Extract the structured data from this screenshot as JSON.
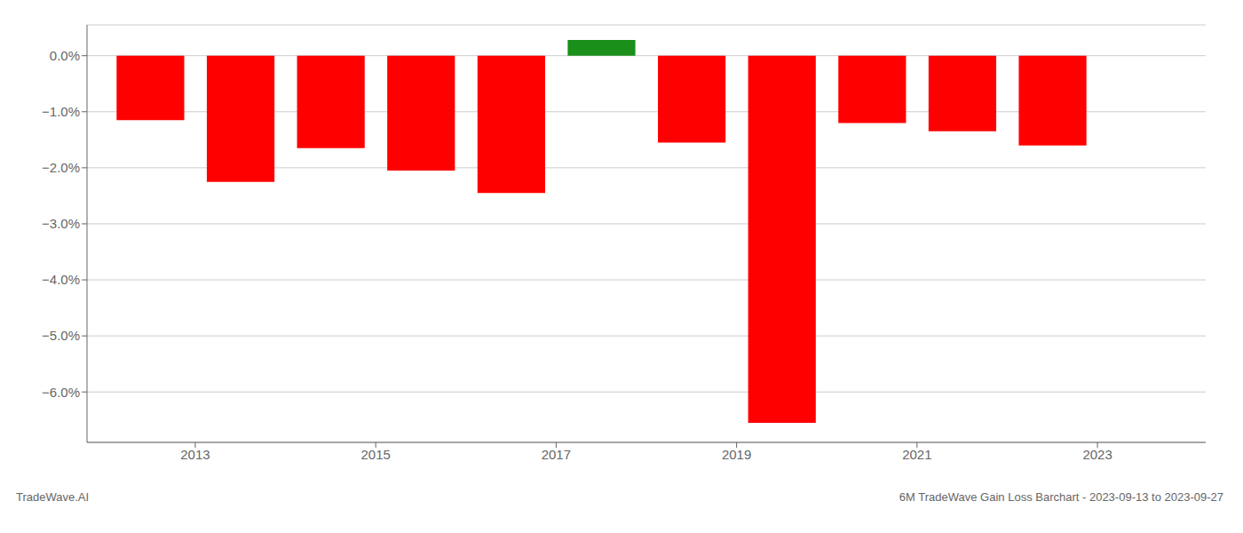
{
  "chart_data": {
    "type": "bar",
    "x": [
      2012.5,
      2013.5,
      2014.5,
      2015.5,
      2016.5,
      2017.5,
      2018.5,
      2019.5,
      2020.5,
      2021.5,
      2022.5
    ],
    "values": [
      -1.15,
      -2.25,
      -1.65,
      -2.05,
      -2.45,
      0.28,
      -1.55,
      -6.55,
      -1.2,
      -1.35,
      -1.6
    ],
    "colors": [
      "#ff0000",
      "#ff0000",
      "#ff0000",
      "#ff0000",
      "#ff0000",
      "#1a8f1a",
      "#ff0000",
      "#ff0000",
      "#ff0000",
      "#ff0000",
      "#ff0000"
    ],
    "xlim": [
      2011.8,
      2024.2
    ],
    "xticks": [
      2013,
      2015,
      2017,
      2019,
      2021,
      2023
    ],
    "ylim": [
      -6.9,
      0.55
    ],
    "yticks": [
      {
        "value": 0.0,
        "label": "0.0%"
      },
      {
        "value": -1.0,
        "label": "−1.0%"
      },
      {
        "value": -2.0,
        "label": "−2.0%"
      },
      {
        "value": -3.0,
        "label": "−3.0%"
      },
      {
        "value": -4.0,
        "label": "−4.0%"
      },
      {
        "value": -5.0,
        "label": "−5.0%"
      },
      {
        "value": -6.0,
        "label": "−6.0%"
      }
    ],
    "grid": "y",
    "annotations": [
      "TradeWave.AI",
      "6M TradeWave Gain Loss Barchart - 2023-09-13 to 2023-09-27"
    ]
  }
}
